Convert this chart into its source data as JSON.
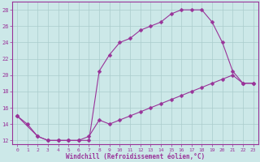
{
  "xlabel": "Windchill (Refroidissement éolien,°C)",
  "xlim": [
    -0.5,
    23.5
  ],
  "ylim": [
    11.5,
    29
  ],
  "ytick_values": [
    12,
    14,
    16,
    18,
    20,
    22,
    24,
    26,
    28
  ],
  "xtick_values": [
    0,
    1,
    2,
    3,
    4,
    5,
    6,
    7,
    8,
    9,
    10,
    11,
    12,
    13,
    14,
    15,
    16,
    17,
    18,
    19,
    20,
    21,
    22,
    23
  ],
  "background_color": "#cce8e8",
  "grid_color": "#aacccc",
  "line_color": "#993399",
  "marker": "D",
  "markersize": 2.5,
  "linewidth": 0.8,
  "curve1_x": [
    0,
    1,
    2,
    3,
    4,
    5,
    6,
    7,
    8,
    9,
    10,
    11,
    12,
    13,
    14,
    15,
    16,
    17,
    18,
    19,
    20,
    21,
    22,
    23
  ],
  "curve1_y": [
    15,
    14,
    12.5,
    12,
    12,
    12,
    12,
    12,
    20.5,
    22.5,
    24,
    24.5,
    25.5,
    26,
    26.5,
    27.5,
    28,
    28,
    28,
    26.5,
    24,
    20.5,
    19,
    19
  ],
  "curve2_x": [
    0,
    2,
    3,
    4,
    5,
    6,
    7,
    8,
    9,
    10,
    11,
    12,
    13,
    14,
    15,
    16,
    17,
    18,
    19,
    20,
    21,
    22,
    23
  ],
  "curve2_y": [
    15,
    12.5,
    12,
    12,
    12,
    12,
    12.5,
    14.5,
    14,
    14.5,
    15,
    15.5,
    16,
    16.5,
    17,
    17.5,
    18,
    18.5,
    19,
    19.5,
    20,
    19,
    19
  ]
}
